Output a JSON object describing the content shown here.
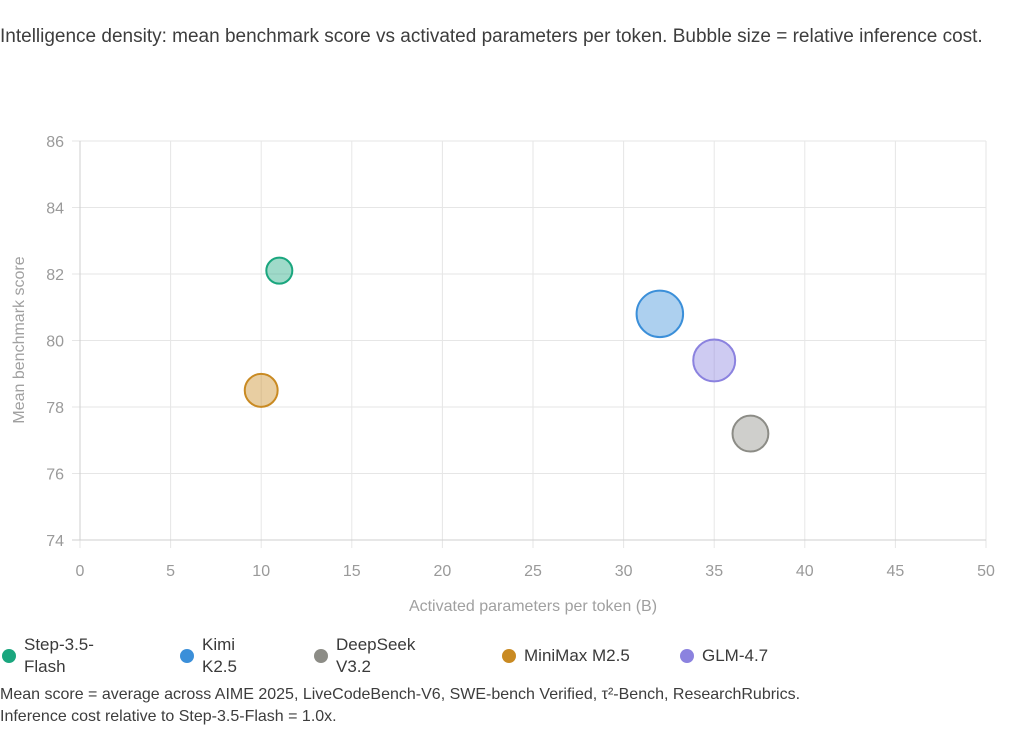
{
  "caption_top": "Intelligence density: mean benchmark score vs activated parameters per token. Bubble size = relative inference cost.",
  "caption_bottom_line1": "Mean score = average across AIME 2025, LiveCodeBench-V6, SWE-bench Verified, τ²-Bench, ResearchRubrics.",
  "caption_bottom_line2": "Inference cost relative to Step-3.5-Flash = 1.0x.",
  "chart_data": {
    "type": "scatter",
    "title": "",
    "xlabel": "Activated parameters per token (B)",
    "ylabel": "Mean benchmark score",
    "xlim": [
      0,
      50
    ],
    "ylim": [
      74,
      86
    ],
    "x_ticks": [
      0,
      5,
      10,
      15,
      20,
      25,
      30,
      35,
      40,
      45,
      50
    ],
    "y_ticks": [
      74,
      76,
      78,
      80,
      82,
      84,
      86
    ],
    "grid": true,
    "legend_position": "bottom",
    "series": [
      {
        "name": "Step-3.5-Flash",
        "x": 11,
        "y": 82.1,
        "relative_cost": 1.0,
        "color": "#1aa67e"
      },
      {
        "name": "Kimi K2.5",
        "x": 32,
        "y": 80.8,
        "relative_cost": 3.2,
        "color": "#3b8fd9"
      },
      {
        "name": "DeepSeek V3.2",
        "x": 37,
        "y": 77.2,
        "relative_cost": 1.9,
        "color": "#8c8c86"
      },
      {
        "name": "MiniMax M2.5",
        "x": 10,
        "y": 78.5,
        "relative_cost": 1.6,
        "color": "#c98a22"
      },
      {
        "name": "GLM-4.7",
        "x": 35,
        "y": 79.4,
        "relative_cost": 2.6,
        "color": "#8b82df"
      }
    ]
  },
  "legend": [
    {
      "line1": "Step-3.5-",
      "line2": "Flash",
      "color": "#1aa67e"
    },
    {
      "line1": "Kimi",
      "line2": "K2.5",
      "color": "#3b8fd9"
    },
    {
      "line1": "DeepSeek",
      "line2": "V3.2",
      "color": "#8c8c86"
    },
    {
      "line1": "MiniMax M2.5",
      "line2": "",
      "color": "#c98a22"
    },
    {
      "line1": "GLM-4.7",
      "line2": "",
      "color": "#8b82df"
    }
  ]
}
